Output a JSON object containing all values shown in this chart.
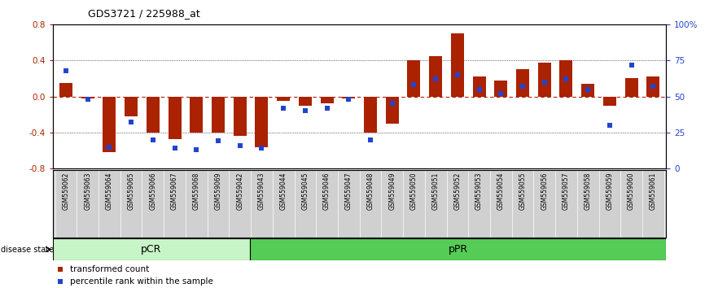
{
  "title": "GDS3721 / 225988_at",
  "samples": [
    "GSM559062",
    "GSM559063",
    "GSM559064",
    "GSM559065",
    "GSM559066",
    "GSM559067",
    "GSM559068",
    "GSM559069",
    "GSM559042",
    "GSM559043",
    "GSM559044",
    "GSM559045",
    "GSM559046",
    "GSM559047",
    "GSM559048",
    "GSM559049",
    "GSM559050",
    "GSM559051",
    "GSM559052",
    "GSM559053",
    "GSM559054",
    "GSM559055",
    "GSM559056",
    "GSM559057",
    "GSM559058",
    "GSM559059",
    "GSM559060",
    "GSM559061"
  ],
  "bar_values": [
    0.15,
    -0.02,
    -0.62,
    -0.22,
    -0.4,
    -0.47,
    -0.4,
    -0.4,
    -0.44,
    -0.56,
    -0.05,
    -0.1,
    -0.08,
    -0.02,
    -0.4,
    -0.3,
    0.4,
    0.45,
    0.7,
    0.22,
    0.18,
    0.3,
    0.38,
    0.4,
    0.14,
    -0.1,
    0.2,
    0.22
  ],
  "percentile_values": [
    68,
    48,
    15,
    32,
    20,
    14,
    13,
    19,
    16,
    14,
    42,
    40,
    42,
    48,
    20,
    45,
    58,
    62,
    65,
    55,
    52,
    57,
    60,
    62,
    55,
    30,
    72,
    57
  ],
  "pCR_count": 9,
  "pPR_count": 19,
  "bar_color": "#aa2200",
  "dot_color": "#2244cc",
  "pCR_color": "#c8f5c8",
  "pPR_color": "#55cc55",
  "ylim": [
    -0.8,
    0.8
  ],
  "yticks_left": [
    -0.8,
    -0.4,
    0.0,
    0.4,
    0.8
  ],
  "yticks_right": [
    0,
    25,
    50,
    75,
    100
  ],
  "background_color": "#ffffff"
}
